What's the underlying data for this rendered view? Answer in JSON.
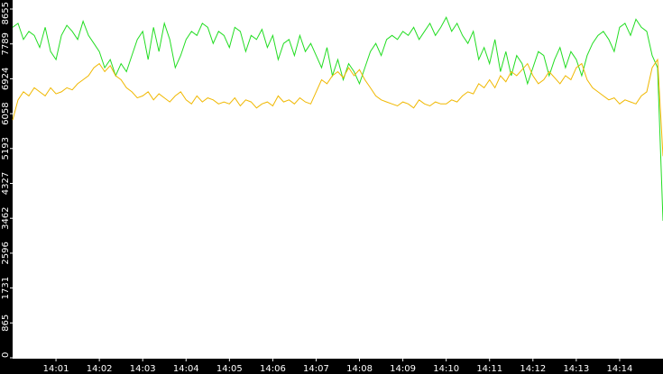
{
  "chart_data": {
    "type": "line",
    "categories": [
      null,
      null,
      null,
      null,
      null,
      null,
      null,
      null,
      "14:01",
      null,
      null,
      null,
      null,
      null,
      null,
      null,
      "14:02",
      null,
      null,
      null,
      null,
      null,
      null,
      null,
      "14:03",
      null,
      null,
      null,
      null,
      null,
      null,
      null,
      "14:04",
      null,
      null,
      null,
      null,
      null,
      null,
      null,
      "14:05",
      null,
      null,
      null,
      null,
      null,
      null,
      null,
      "14:06",
      null,
      null,
      null,
      null,
      null,
      null,
      null,
      "14:07",
      null,
      null,
      null,
      null,
      null,
      null,
      null,
      "14:08",
      null,
      null,
      null,
      null,
      null,
      null,
      null,
      "14:09",
      null,
      null,
      null,
      null,
      null,
      null,
      null,
      "14:10",
      null,
      null,
      null,
      null,
      null,
      null,
      null,
      "14:11",
      null,
      null,
      null,
      null,
      null,
      null,
      null,
      "14:12",
      null,
      null,
      null,
      null,
      null,
      null,
      null,
      "14:13",
      null,
      null,
      null,
      null,
      null,
      null,
      null,
      "14:14",
      null,
      null,
      null,
      null,
      null,
      null,
      null,
      null
    ],
    "series": [
      {
        "color": "#22dd22",
        "values": [
          8200,
          8300,
          7900,
          8100,
          8000,
          7700,
          8200,
          7600,
          7400,
          8000,
          8250,
          8100,
          7900,
          8350,
          8000,
          7800,
          7600,
          7200,
          7400,
          7000,
          7300,
          7100,
          7500,
          7900,
          8100,
          7400,
          8200,
          7600,
          8300,
          7900,
          7200,
          7500,
          7900,
          8100,
          8000,
          8300,
          8200,
          7800,
          8100,
          8000,
          7700,
          8200,
          8100,
          7600,
          8000,
          7900,
          8150,
          7700,
          8000,
          7400,
          7800,
          7900,
          7500,
          8000,
          7600,
          7800,
          7500,
          7200,
          7700,
          7000,
          7400,
          6900,
          7300,
          7100,
          6800,
          7200,
          7600,
          7800,
          7500,
          7900,
          8000,
          7900,
          8100,
          8000,
          8200,
          7900,
          8100,
          8300,
          8000,
          8200,
          8450,
          8100,
          8300,
          8000,
          7800,
          8100,
          7400,
          7700,
          7300,
          7900,
          7100,
          7600,
          7000,
          7500,
          7300,
          6800,
          7200,
          7600,
          7500,
          7000,
          7400,
          7700,
          7200,
          7600,
          7400,
          7000,
          7500,
          7800,
          8000,
          8100,
          7900,
          7600,
          8200,
          8300,
          8000,
          8400,
          8200,
          8100,
          7500,
          7200,
          3400
        ]
      },
      {
        "color": "#f0b800",
        "values": [
          5900,
          6400,
          6600,
          6500,
          6700,
          6600,
          6500,
          6700,
          6550,
          6600,
          6700,
          6650,
          6800,
          6900,
          7000,
          7200,
          7300,
          7100,
          7250,
          7000,
          6900,
          6700,
          6600,
          6450,
          6500,
          6600,
          6400,
          6550,
          6450,
          6350,
          6500,
          6600,
          6400,
          6300,
          6500,
          6350,
          6450,
          6400,
          6300,
          6350,
          6300,
          6450,
          6250,
          6400,
          6350,
          6200,
          6300,
          6350,
          6250,
          6500,
          6350,
          6400,
          6300,
          6450,
          6350,
          6300,
          6600,
          6900,
          6800,
          7000,
          7100,
          6950,
          7200,
          7000,
          7150,
          6900,
          6700,
          6500,
          6400,
          6350,
          6300,
          6250,
          6350,
          6300,
          6200,
          6400,
          6300,
          6250,
          6350,
          6300,
          6300,
          6400,
          6350,
          6500,
          6600,
          6550,
          6800,
          6700,
          6900,
          6700,
          7000,
          6850,
          7100,
          7000,
          7150,
          7300,
          7000,
          6800,
          6900,
          7100,
          6950,
          6800,
          7000,
          6900,
          7200,
          7300,
          6900,
          6700,
          6600,
          6500,
          6400,
          6450,
          6300,
          6400,
          6350,
          6300,
          6500,
          6600,
          7200,
          7400,
          5000
        ]
      }
    ],
    "ylim": [
      0,
      8655
    ],
    "yticks": [
      0,
      865,
      1731,
      2596,
      3462,
      4327,
      5193,
      6058,
      6924,
      7789,
      8655
    ]
  }
}
